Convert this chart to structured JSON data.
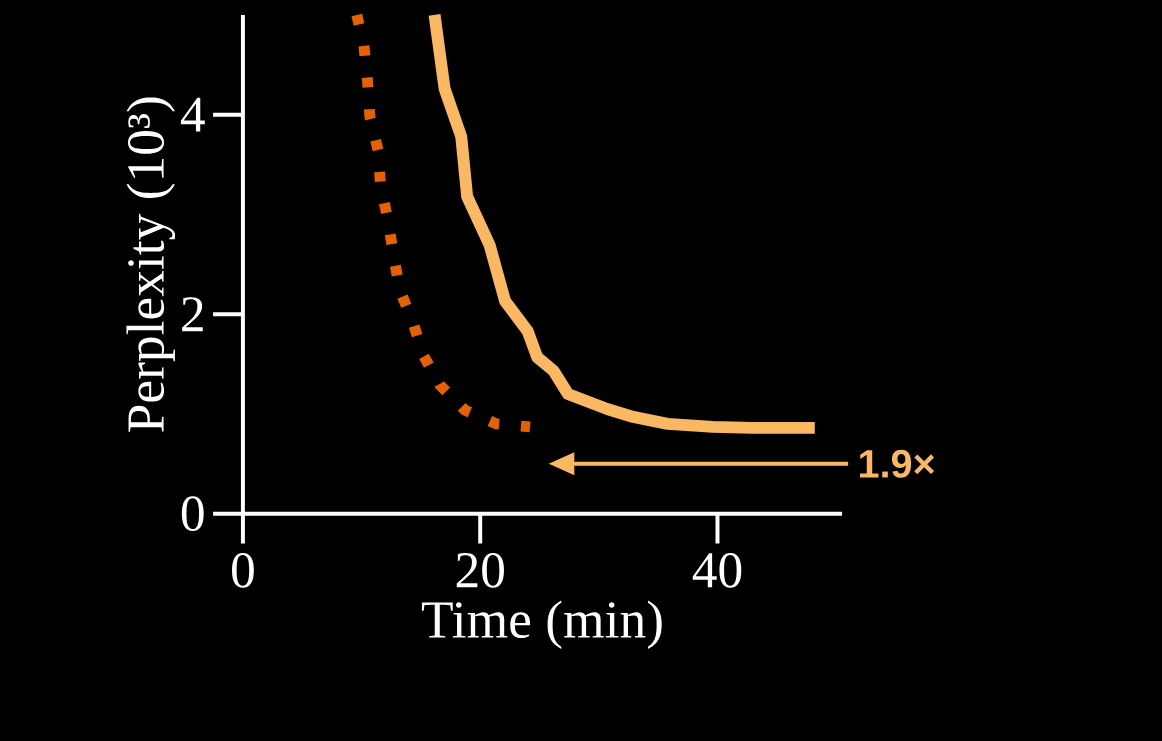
{
  "chart_data": {
    "type": "line",
    "xlabel": "Time (min)",
    "ylabel": "Perplexity (10³)",
    "xlim": [
      0,
      50.5
    ],
    "ylim": [
      0,
      5
    ],
    "xticks": [
      0,
      20,
      40
    ],
    "yticks": [
      0,
      2,
      4
    ],
    "grid": false,
    "marker": "none",
    "annotations": [
      "1.9×"
    ],
    "series": [
      {
        "color": "#fbb862",
        "line_style": "solid",
        "x": [
          16.15,
          17.0,
          18.4,
          18.9,
          20.8,
          22.1,
          24.0,
          24.8,
          26.2,
          27.4,
          30.7,
          32.9,
          35.8,
          39.6,
          42.9,
          48.2
        ],
        "values": [
          5.0,
          4.26,
          3.78,
          3.18,
          2.69,
          2.13,
          1.83,
          1.57,
          1.43,
          1.2,
          1.05,
          0.97,
          0.9,
          0.87,
          0.86,
          0.86
        ]
      },
      {
        "color": "#e66101",
        "line_style": "dotted",
        "x": [
          9.6,
          10.2,
          10.5,
          10.7,
          11.4,
          11.6,
          12.2,
          12.7,
          13.2,
          14.3,
          15.2,
          16.6,
          18.7,
          21.4,
          24.2
        ],
        "values": [
          5.0,
          4.69,
          4.34,
          3.98,
          3.64,
          3.29,
          2.96,
          2.59,
          2.25,
          1.93,
          1.59,
          1.29,
          1.04,
          0.9,
          0.87
        ]
      }
    ]
  }
}
